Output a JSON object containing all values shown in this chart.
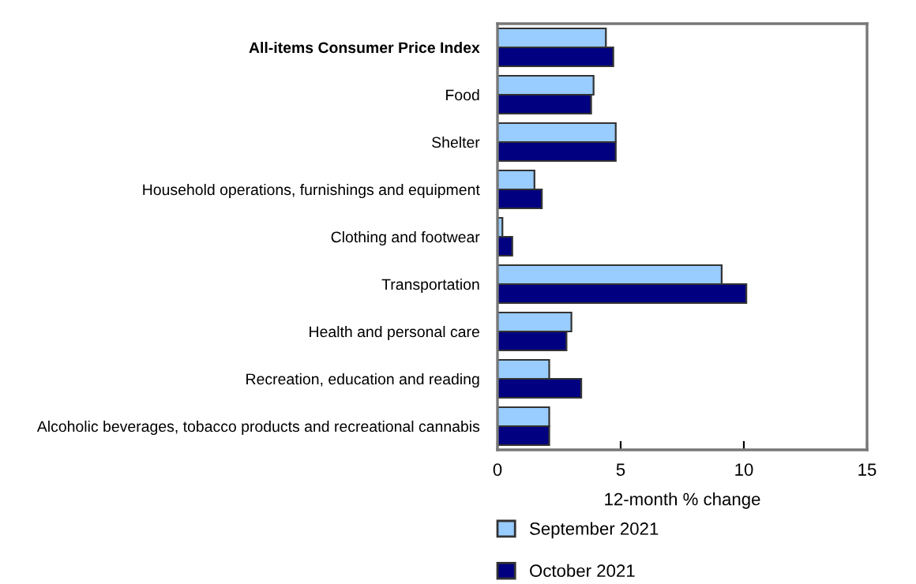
{
  "chart_data": {
    "type": "bar",
    "orientation": "horizontal",
    "xlabel": "12-month % change",
    "categories": [
      "All-items Consumer Price Index",
      "Food",
      "Shelter",
      "Household operations, furnishings and equipment",
      "Clothing and footwear",
      "Transportation",
      "Health and personal care",
      "Recreation, education and reading",
      "Alcoholic beverages, tobacco products and recreational cannabis"
    ],
    "series": [
      {
        "name": "September 2021",
        "color": "#99ccff",
        "values": [
          4.4,
          3.9,
          4.8,
          1.5,
          0.2,
          9.1,
          3.0,
          2.1,
          2.1
        ]
      },
      {
        "name": "October 2021",
        "color": "#000080",
        "values": [
          4.7,
          3.8,
          4.8,
          1.8,
          0.6,
          10.1,
          2.8,
          3.4,
          2.1
        ]
      }
    ],
    "xlim": [
      0,
      15
    ],
    "xticks": [
      0,
      5,
      10,
      15
    ],
    "grid": false,
    "legend": "bottom"
  }
}
